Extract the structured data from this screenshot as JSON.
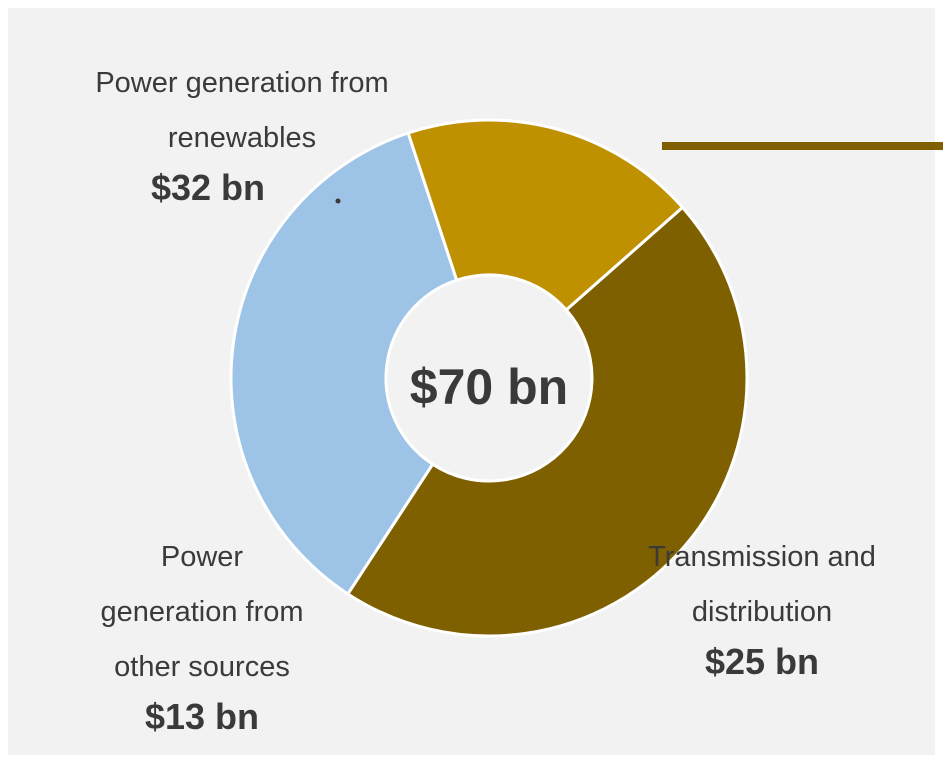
{
  "chart_data": {
    "type": "donut",
    "center_label": "$70 bn",
    "categories": [
      [
        "Power generation from",
        "renewables"
      ],
      [
        "Transmission and",
        "distribution"
      ],
      [
        "Power",
        "generation from",
        "other sources"
      ]
    ],
    "values": [
      32,
      25,
      13
    ],
    "value_labels": [
      "$32 bn",
      "$25 bn",
      "$13 bn"
    ],
    "colors": [
      "#7f6000",
      "#9dc3e6",
      "#bf9000"
    ]
  }
}
